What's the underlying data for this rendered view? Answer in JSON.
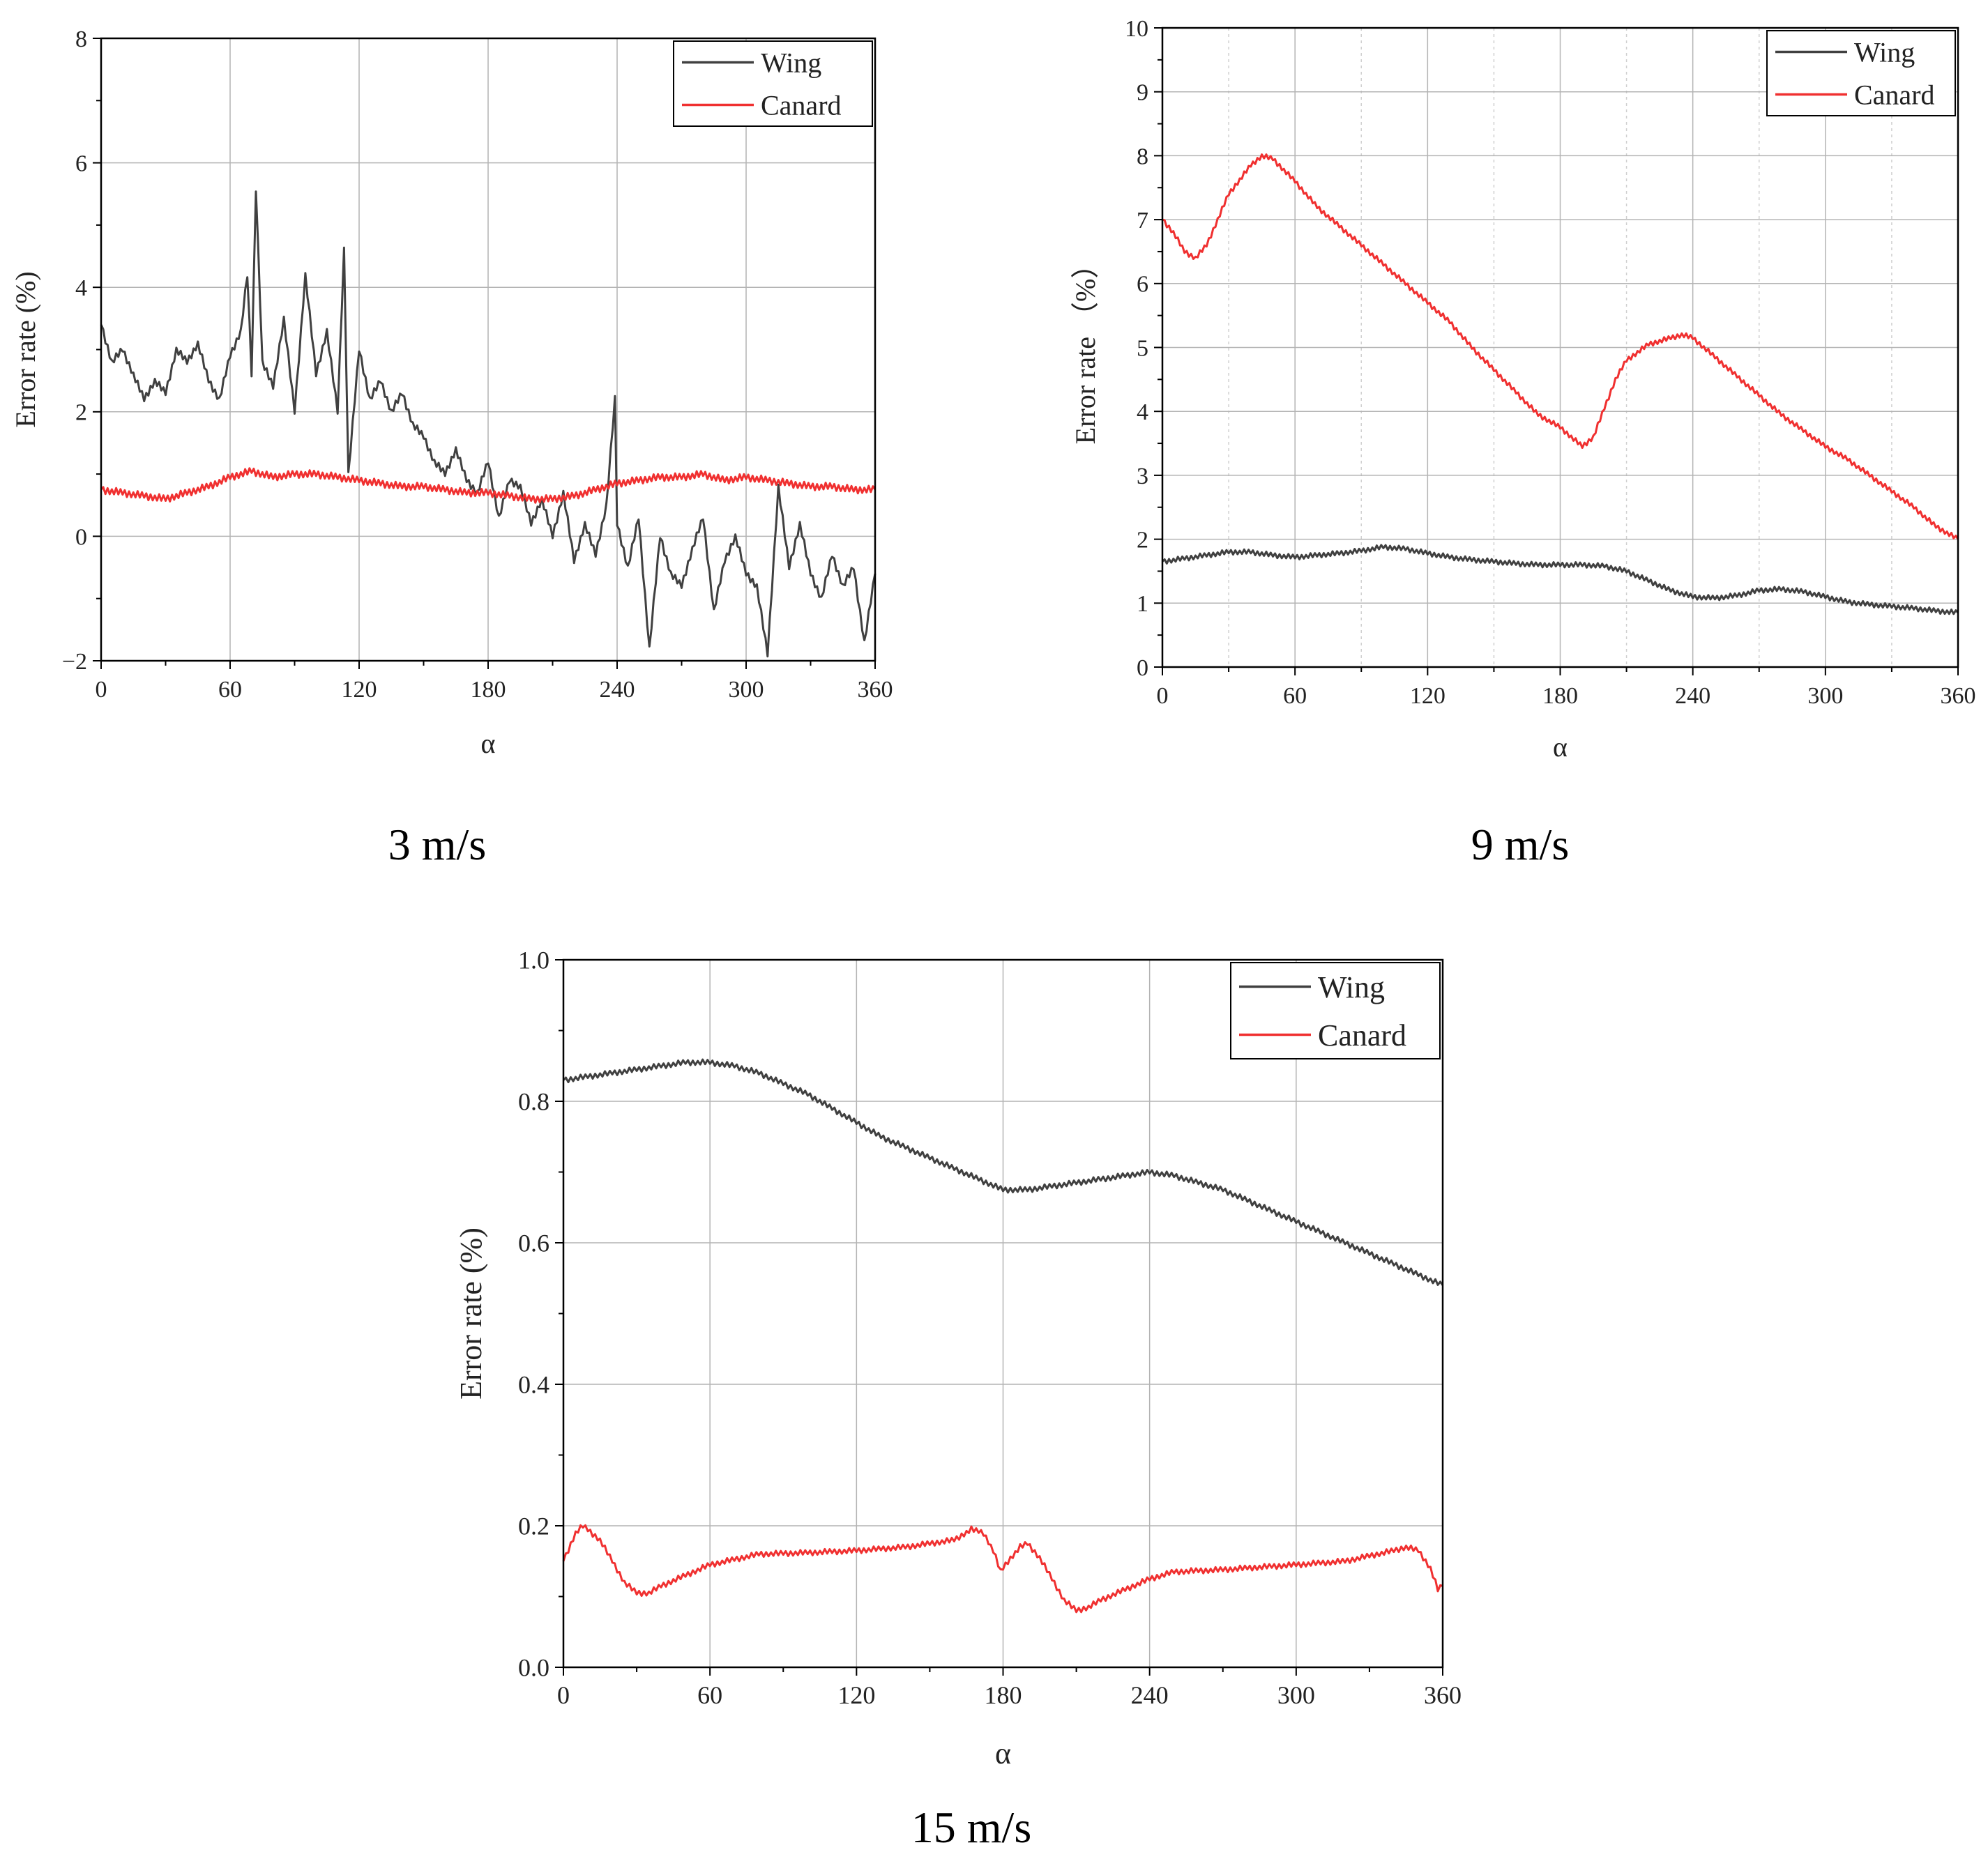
{
  "figure": {
    "captions": [
      "3 m/s",
      "9 m/s",
      "15 m/s"
    ]
  },
  "colors": {
    "wing": "#404040",
    "canard": "#f03030",
    "grid": "#b4b4b4",
    "axis": "#000000"
  },
  "chart_data": [
    {
      "type": "line",
      "title": "3 m/s",
      "xlabel": "α",
      "ylabel": "Error rate (%)",
      "xlim": [
        0,
        360
      ],
      "ylim": [
        -2,
        8
      ],
      "xticks": [
        0,
        60,
        120,
        180,
        240,
        300,
        360
      ],
      "yticks": [
        -2,
        0,
        2,
        4,
        6,
        8
      ],
      "ytick_labels": [
        "−2",
        "0",
        "2",
        "4",
        "6",
        "8"
      ],
      "grid": "solid",
      "legend": "top-right",
      "series": [
        {
          "name": "Wing",
          "color": "#404040",
          "x": [
            0,
            5,
            10,
            15,
            20,
            25,
            30,
            35,
            40,
            45,
            50,
            55,
            60,
            65,
            68,
            70,
            72,
            75,
            80,
            85,
            90,
            95,
            100,
            105,
            110,
            113,
            115,
            120,
            125,
            130,
            135,
            140,
            145,
            150,
            155,
            160,
            165,
            170,
            175,
            180,
            185,
            190,
            195,
            200,
            205,
            210,
            215,
            220,
            225,
            230,
            235,
            239,
            240,
            245,
            250,
            255,
            260,
            265,
            270,
            275,
            280,
            285,
            290,
            295,
            300,
            305,
            310,
            315,
            320,
            325,
            330,
            335,
            340,
            345,
            350,
            355,
            360
          ],
          "y": [
            3.4,
            2.8,
            3.0,
            2.6,
            2.2,
            2.5,
            2.3,
            3.0,
            2.8,
            3.1,
            2.5,
            2.2,
            2.9,
            3.3,
            4.2,
            2.6,
            5.6,
            2.8,
            2.4,
            3.5,
            2.0,
            4.2,
            2.6,
            3.3,
            2.0,
            4.6,
            1.0,
            3.0,
            2.2,
            2.5,
            2.0,
            2.3,
            1.8,
            1.6,
            1.2,
            1.0,
            1.4,
            0.9,
            0.7,
            1.2,
            0.3,
            0.9,
            0.8,
            0.2,
            0.6,
            0.0,
            0.7,
            -0.4,
            0.2,
            -0.3,
            0.5,
            2.2,
            0.2,
            -0.5,
            0.3,
            -1.8,
            0.0,
            -0.6,
            -0.8,
            -0.2,
            0.3,
            -1.2,
            -0.4,
            0.0,
            -0.6,
            -0.8,
            -1.9,
            0.8,
            -0.5,
            0.2,
            -0.6,
            -1.0,
            -0.3,
            -0.8,
            -0.5,
            -1.7,
            -0.6
          ]
        },
        {
          "name": "Canard",
          "color": "#f03030",
          "x": [
            0,
            10,
            20,
            30,
            40,
            50,
            60,
            70,
            80,
            90,
            100,
            110,
            120,
            130,
            140,
            150,
            160,
            170,
            180,
            190,
            200,
            210,
            220,
            230,
            240,
            250,
            260,
            270,
            280,
            290,
            300,
            310,
            320,
            330,
            340,
            350,
            360
          ],
          "y": [
            0.75,
            0.7,
            0.65,
            0.6,
            0.7,
            0.8,
            0.95,
            1.05,
            0.95,
            1.0,
            1.0,
            0.95,
            0.9,
            0.85,
            0.8,
            0.8,
            0.75,
            0.7,
            0.7,
            0.65,
            0.6,
            0.6,
            0.65,
            0.75,
            0.85,
            0.9,
            0.95,
            0.95,
            1.0,
            0.9,
            0.95,
            0.9,
            0.85,
            0.8,
            0.8,
            0.75,
            0.75
          ]
        }
      ]
    },
    {
      "type": "line",
      "title": "9 m/s",
      "xlabel": "α",
      "ylabel": "Error rate （%）",
      "xlim": [
        0,
        360
      ],
      "ylim": [
        0,
        10
      ],
      "xticks": [
        0,
        60,
        120,
        180,
        240,
        300,
        360
      ],
      "yticks": [
        0,
        1,
        2,
        3,
        4,
        5,
        6,
        7,
        8,
        9,
        10
      ],
      "ytick_labels": [
        "0",
        "1",
        "2",
        "3",
        "4",
        "5",
        "6",
        "7",
        "8",
        "9",
        "10"
      ],
      "grid": "solid+dotted",
      "legend": "top-right",
      "series": [
        {
          "name": "Wing",
          "color": "#404040",
          "x": [
            0,
            10,
            20,
            30,
            40,
            50,
            60,
            70,
            80,
            90,
            100,
            110,
            120,
            130,
            140,
            150,
            160,
            170,
            180,
            190,
            200,
            210,
            220,
            230,
            240,
            250,
            260,
            270,
            280,
            290,
            300,
            310,
            320,
            330,
            340,
            350,
            360
          ],
          "y": [
            1.65,
            1.7,
            1.75,
            1.8,
            1.8,
            1.75,
            1.72,
            1.75,
            1.78,
            1.82,
            1.88,
            1.85,
            1.78,
            1.72,
            1.68,
            1.65,
            1.62,
            1.6,
            1.6,
            1.6,
            1.58,
            1.5,
            1.35,
            1.2,
            1.1,
            1.08,
            1.12,
            1.2,
            1.22,
            1.18,
            1.1,
            1.02,
            0.98,
            0.95,
            0.92,
            0.88,
            0.85
          ]
        },
        {
          "name": "Canard",
          "color": "#f03030",
          "x": [
            0,
            5,
            10,
            15,
            20,
            25,
            30,
            40,
            45,
            50,
            60,
            70,
            80,
            90,
            100,
            110,
            120,
            130,
            140,
            150,
            160,
            170,
            180,
            185,
            190,
            195,
            200,
            205,
            210,
            220,
            230,
            235,
            240,
            250,
            260,
            270,
            280,
            290,
            300,
            310,
            320,
            330,
            340,
            350,
            360
          ],
          "y": [
            7.0,
            6.8,
            6.5,
            6.4,
            6.6,
            7.0,
            7.4,
            7.85,
            8.0,
            7.95,
            7.6,
            7.2,
            6.9,
            6.6,
            6.3,
            6.0,
            5.7,
            5.4,
            5.0,
            4.65,
            4.3,
            3.95,
            3.75,
            3.6,
            3.45,
            3.6,
            4.05,
            4.5,
            4.8,
            5.05,
            5.15,
            5.2,
            5.15,
            4.85,
            4.55,
            4.25,
            3.95,
            3.7,
            3.45,
            3.25,
            3.0,
            2.75,
            2.5,
            2.2,
            2.0
          ]
        }
      ]
    },
    {
      "type": "line",
      "title": "15 m/s",
      "xlabel": "α",
      "ylabel": "Error rate (%)",
      "xlim": [
        0,
        360
      ],
      "ylim": [
        0,
        1.0
      ],
      "xticks": [
        0,
        60,
        120,
        180,
        240,
        300,
        360
      ],
      "yticks": [
        0,
        0.2,
        0.4,
        0.6,
        0.8,
        1.0
      ],
      "ytick_labels": [
        "0.0",
        "0.2",
        "0.4",
        "0.6",
        "0.8",
        "1.0"
      ],
      "grid": "solid",
      "legend": "top-right",
      "series": [
        {
          "name": "Wing",
          "color": "#404040",
          "x": [
            0,
            10,
            20,
            30,
            40,
            50,
            60,
            70,
            80,
            90,
            100,
            110,
            120,
            130,
            140,
            150,
            160,
            170,
            180,
            190,
            200,
            210,
            220,
            230,
            240,
            250,
            260,
            270,
            280,
            290,
            300,
            310,
            320,
            330,
            340,
            350,
            360
          ],
          "y": [
            0.83,
            0.835,
            0.84,
            0.845,
            0.85,
            0.855,
            0.855,
            0.85,
            0.84,
            0.825,
            0.81,
            0.79,
            0.77,
            0.75,
            0.735,
            0.72,
            0.705,
            0.69,
            0.675,
            0.675,
            0.68,
            0.685,
            0.69,
            0.695,
            0.7,
            0.695,
            0.685,
            0.675,
            0.66,
            0.645,
            0.63,
            0.615,
            0.6,
            0.585,
            0.57,
            0.555,
            0.54
          ]
        },
        {
          "name": "Canard",
          "color": "#f03030",
          "x": [
            0,
            5,
            8,
            15,
            20,
            25,
            30,
            35,
            40,
            50,
            60,
            80,
            100,
            120,
            140,
            160,
            167,
            172,
            176,
            179,
            182,
            187,
            190,
            195,
            200,
            205,
            210,
            215,
            220,
            230,
            240,
            250,
            270,
            300,
            320,
            340,
            345,
            350,
            355,
            358,
            360
          ],
          "y": [
            0.15,
            0.19,
            0.2,
            0.18,
            0.15,
            0.12,
            0.105,
            0.105,
            0.115,
            0.13,
            0.145,
            0.16,
            0.162,
            0.165,
            0.17,
            0.18,
            0.195,
            0.19,
            0.165,
            0.135,
            0.15,
            0.17,
            0.175,
            0.155,
            0.125,
            0.095,
            0.08,
            0.085,
            0.095,
            0.11,
            0.125,
            0.135,
            0.138,
            0.145,
            0.15,
            0.165,
            0.17,
            0.165,
            0.14,
            0.11,
            0.115
          ]
        }
      ]
    }
  ]
}
